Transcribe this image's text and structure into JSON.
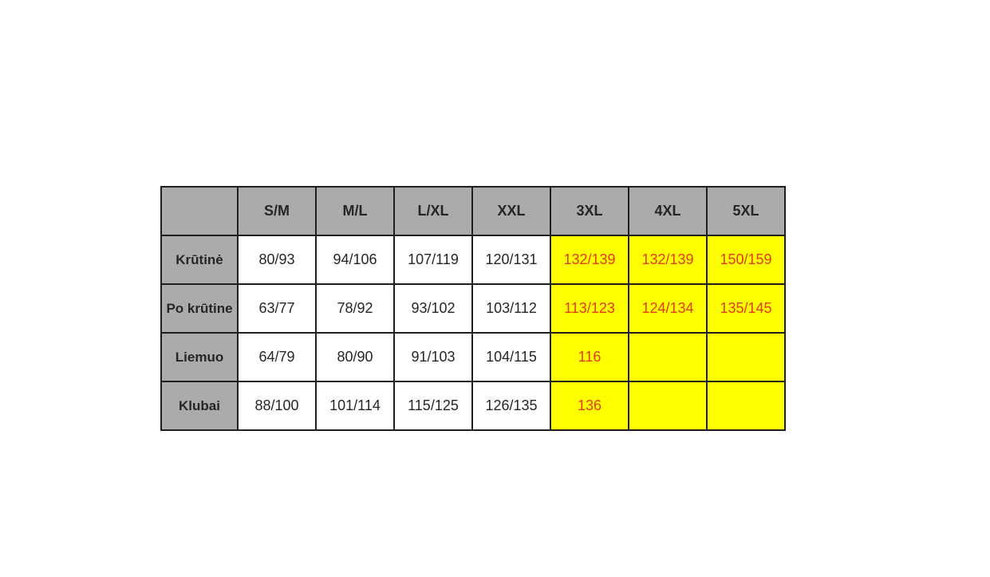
{
  "page": {
    "background_color": "#ffffff"
  },
  "table": {
    "columns": [
      "",
      "S/M",
      "M/L",
      "L/XL",
      "XXL",
      "3XL",
      "4XL",
      "5XL"
    ],
    "highlight_from_col": 4,
    "rows": [
      {
        "label": "Krūtinė",
        "values": [
          "80/93",
          "94/106",
          "107/119",
          "120/131",
          "132/139",
          "132/139",
          "150/159"
        ]
      },
      {
        "label": "Po krūtine",
        "values": [
          "63/77",
          "78/92",
          "93/102",
          "103/112",
          "113/123",
          "124/134",
          "135/145"
        ]
      },
      {
        "label": "Liemuo",
        "values": [
          "64/79",
          "80/90",
          "91/103",
          "104/115",
          "116",
          "",
          ""
        ]
      },
      {
        "label": "Klubai",
        "values": [
          "88/100",
          "101/114",
          "115/125",
          "126/135",
          "136",
          "",
          ""
        ]
      }
    ],
    "colors": {
      "header_bg": "#ababab",
      "cell_bg": "#ffffff",
      "highlight_bg": "#ffff00",
      "highlight_text": "#e23a17",
      "text": "#262626",
      "border": "#1f1f1f"
    }
  },
  "chart_data": {
    "type": "table",
    "title": "",
    "columns": [
      "",
      "S/M",
      "M/L",
      "L/XL",
      "XXL",
      "3XL",
      "4XL",
      "5XL"
    ],
    "rows": [
      [
        "Krūtinė",
        "80/93",
        "94/106",
        "107/119",
        "120/131",
        "132/139",
        "132/139",
        "150/159"
      ],
      [
        "Po krūtine",
        "63/77",
        "78/92",
        "93/102",
        "103/112",
        "113/123",
        "124/134",
        "135/145"
      ],
      [
        "Liemuo",
        "64/79",
        "80/90",
        "91/103",
        "104/115",
        "116",
        "",
        ""
      ],
      [
        "Klubai",
        "88/100",
        "101/114",
        "115/125",
        "126/135",
        "136",
        "",
        ""
      ]
    ],
    "layout_hints": {
      "header_row_and_first_column_gray": true,
      "highlighted_columns": [
        "3XL",
        "4XL",
        "5XL"
      ],
      "highlight_style": "yellow background, red-orange text"
    }
  }
}
